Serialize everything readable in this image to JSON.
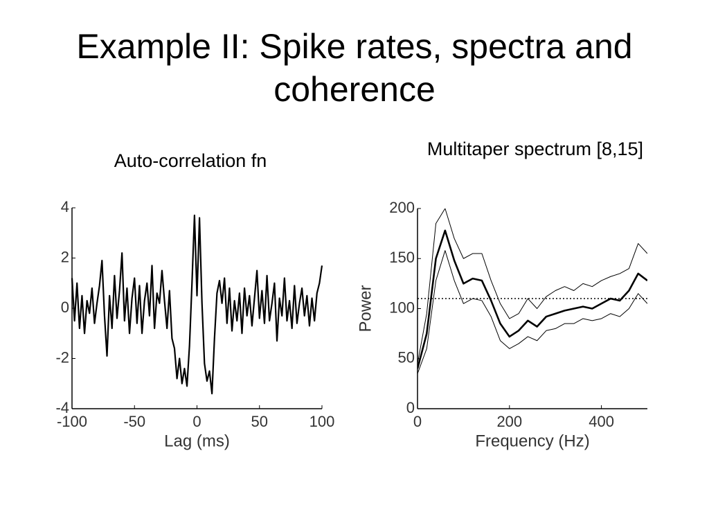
{
  "title": "Example II:  Spike rates, spectra and coherence",
  "chart_data": [
    {
      "type": "line",
      "title": "Auto-correlation fn",
      "x_label": "Lag (ms)",
      "xlim": [
        -100,
        100
      ],
      "xticks": [
        -100,
        -50,
        0,
        50,
        100
      ],
      "ylim": [
        -4,
        4
      ],
      "yticks": [
        -4,
        -2,
        0,
        2,
        4
      ],
      "x": [
        -100,
        -98,
        -96,
        -94,
        -92,
        -90,
        -88,
        -86,
        -84,
        -82,
        -80,
        -78,
        -76,
        -74,
        -72,
        -70,
        -68,
        -66,
        -64,
        -62,
        -60,
        -58,
        -56,
        -54,
        -52,
        -50,
        -48,
        -46,
        -44,
        -42,
        -40,
        -38,
        -36,
        -34,
        -32,
        -30,
        -28,
        -26,
        -24,
        -22,
        -20,
        -18,
        -16,
        -14,
        -12,
        -10,
        -8,
        -6,
        -4,
        -2,
        0,
        2,
        4,
        6,
        8,
        10,
        12,
        14,
        16,
        18,
        20,
        22,
        24,
        26,
        28,
        30,
        32,
        34,
        36,
        38,
        40,
        42,
        44,
        46,
        48,
        50,
        52,
        54,
        56,
        58,
        60,
        62,
        64,
        66,
        68,
        70,
        72,
        74,
        76,
        78,
        80,
        82,
        84,
        86,
        88,
        90,
        92,
        94,
        96,
        98,
        100
      ],
      "series": [
        {
          "color": "#000000",
          "width": 2.2,
          "values": [
            1.2,
            -0.5,
            1.0,
            -0.8,
            0.5,
            -1.0,
            0.3,
            -0.2,
            0.8,
            -0.6,
            0.2,
            0.9,
            1.9,
            -0.3,
            -1.9,
            0.5,
            -0.8,
            1.3,
            -0.4,
            0.7,
            2.2,
            -0.5,
            0.8,
            -1.0,
            0.4,
            1.2,
            -0.6,
            0.9,
            -1.0,
            0.3,
            1.0,
            -0.3,
            1.7,
            -0.8,
            0.6,
            0.2,
            1.5,
            0.3,
            -0.8,
            0.7,
            -1.2,
            -1.6,
            -2.8,
            -2.0,
            -3.0,
            -2.4,
            -3.1,
            -1.5,
            1.0,
            3.7,
            0.5,
            3.6,
            0.2,
            -2.2,
            -2.9,
            -2.5,
            -3.4,
            -1.2,
            0.6,
            1.1,
            0.2,
            1.2,
            -0.6,
            0.8,
            -0.9,
            0.3,
            -0.5,
            0.6,
            -1.0,
            0.8,
            -0.3,
            0.5,
            -0.7,
            0.4,
            1.5,
            -0.4,
            0.7,
            -0.6,
            1.3,
            -0.5,
            0.2,
            1.0,
            -1.3,
            0.4,
            -0.3,
            1.2,
            -0.5,
            0.3,
            -0.8,
            0.9,
            -0.6,
            0.2,
            0.8,
            -0.3,
            0.5,
            -0.7,
            0.4,
            -0.5,
            0.6,
            1.0,
            1.7
          ]
        }
      ]
    },
    {
      "type": "line",
      "title": "Multitaper spectrum [8,15]",
      "x_label": "Frequency (Hz)",
      "y_label": "Power",
      "xlim": [
        0,
        500
      ],
      "xticks": [
        0,
        200,
        400
      ],
      "ylim": [
        0,
        200
      ],
      "yticks": [
        0,
        50,
        100,
        150,
        200
      ],
      "reference_line": 110,
      "x": [
        0,
        20,
        40,
        60,
        80,
        100,
        120,
        140,
        160,
        180,
        200,
        220,
        240,
        260,
        280,
        300,
        320,
        340,
        360,
        380,
        400,
        420,
        440,
        460,
        480,
        500
      ],
      "series": [
        {
          "color": "#000000",
          "width": 1,
          "values": [
            45,
            95,
            185,
            200,
            170,
            150,
            155,
            155,
            128,
            105,
            90,
            95,
            110,
            100,
            112,
            118,
            122,
            118,
            125,
            122,
            128,
            132,
            135,
            140,
            165,
            155
          ]
        },
        {
          "color": "#000000",
          "width": 2.6,
          "values": [
            40,
            75,
            150,
            178,
            148,
            125,
            130,
            128,
            108,
            85,
            72,
            78,
            88,
            82,
            92,
            95,
            98,
            100,
            102,
            100,
            105,
            110,
            108,
            118,
            135,
            128
          ]
        },
        {
          "color": "#000000",
          "width": 1,
          "values": [
            35,
            60,
            128,
            158,
            128,
            105,
            110,
            108,
            92,
            68,
            60,
            65,
            72,
            68,
            78,
            80,
            85,
            85,
            90,
            88,
            90,
            95,
            92,
            100,
            115,
            105
          ]
        }
      ]
    }
  ]
}
